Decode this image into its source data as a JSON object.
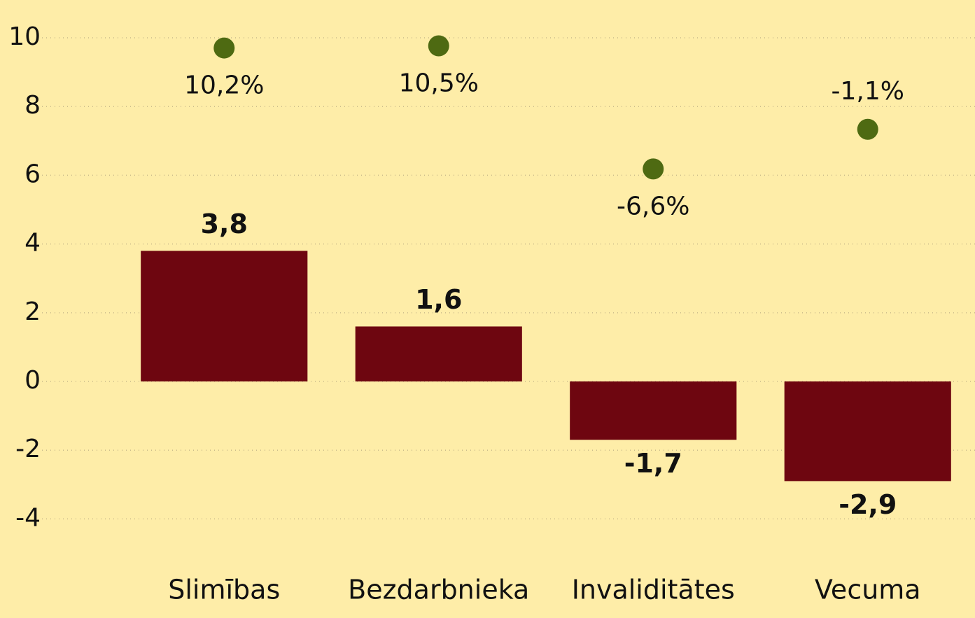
{
  "chart_data": {
    "type": "bar",
    "categories": [
      "Slimības",
      "Bezdarbnieka",
      "Invaliditātes",
      "Vecuma"
    ],
    "series": [
      {
        "type": "bar",
        "color": "#6e0610",
        "values": [
          3.8,
          1.6,
          -1.7,
          -2.9
        ],
        "value_labels": [
          "3,8",
          "1,6",
          "-1,7",
          "-2,9"
        ]
      },
      {
        "type": "scatter",
        "axis": "y2",
        "color": "#4e6a12",
        "values": [
          10.2,
          10.5,
          -6.6,
          -1.1
        ],
        "value_labels": [
          "10,2%",
          "10,5%",
          "-6,6%",
          "-1,1%"
        ]
      }
    ],
    "ylim": [
      -5,
      10.5
    ],
    "yticks": [
      -4,
      -2,
      0,
      2,
      4,
      6,
      8,
      10
    ],
    "y2lim": [
      -60,
      14
    ],
    "grid": true
  }
}
